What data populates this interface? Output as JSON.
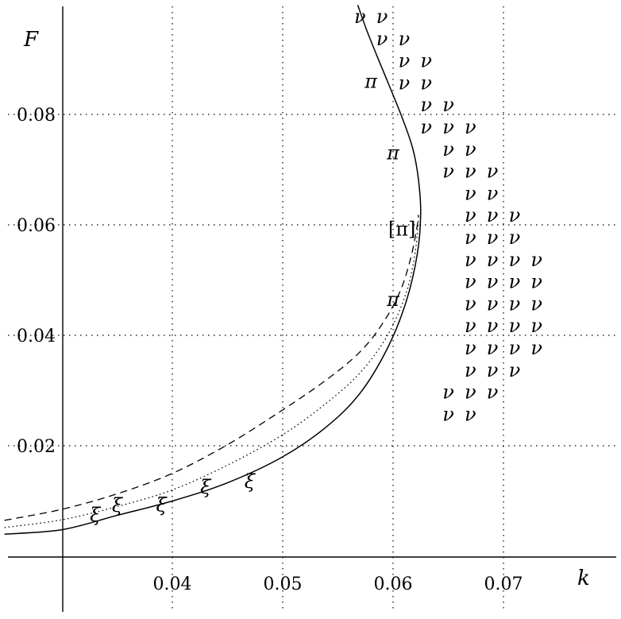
{
  "chart_data": {
    "type": "scatter",
    "title": "",
    "xlabel": "k",
    "ylabel": "F",
    "xlim": [
      0.025,
      0.075
    ],
    "ylim": [
      -0.001,
      0.1
    ],
    "x_ticks": [
      0.04,
      0.05,
      0.06,
      0.07
    ],
    "y_ticks": [
      0.02,
      0.04,
      0.06,
      0.08
    ],
    "x_tick_labels": [
      "0.04",
      "0.05",
      "0.06",
      "0.07"
    ],
    "y_tick_labels": [
      "0.02",
      "0.04",
      "0.06",
      "0.08"
    ],
    "grid": "dotted",
    "series": [
      {
        "style": "solid",
        "points": [
          [
            0.0248,
            0.004
          ],
          [
            0.03,
            0.0048
          ],
          [
            0.035,
            0.0074
          ],
          [
            0.04,
            0.01
          ],
          [
            0.045,
            0.0133
          ],
          [
            0.05,
            0.018
          ],
          [
            0.054,
            0.0235
          ],
          [
            0.057,
            0.0295
          ],
          [
            0.0595,
            0.0377
          ],
          [
            0.0612,
            0.0462
          ],
          [
            0.0622,
            0.0548
          ],
          [
            0.0625,
            0.062
          ],
          [
            0.0623,
            0.0682
          ],
          [
            0.0618,
            0.0737
          ],
          [
            0.0609,
            0.079
          ],
          [
            0.0598,
            0.0845
          ],
          [
            0.0586,
            0.0903
          ],
          [
            0.0576,
            0.0953
          ],
          [
            0.0568,
            0.0998
          ]
        ]
      },
      {
        "style": "dashed",
        "points": [
          [
            0.0248,
            0.0065
          ],
          [
            0.03,
            0.0085
          ],
          [
            0.035,
            0.0113
          ],
          [
            0.04,
            0.015
          ],
          [
            0.045,
            0.0202
          ],
          [
            0.05,
            0.0265
          ],
          [
            0.054,
            0.032
          ],
          [
            0.057,
            0.037
          ],
          [
            0.059,
            0.042
          ],
          [
            0.0606,
            0.0478
          ],
          [
            0.0616,
            0.054
          ],
          [
            0.0622,
            0.06
          ],
          [
            0.0623,
            0.0618
          ]
        ]
      },
      {
        "style": "dotted",
        "points": [
          [
            0.0248,
            0.0052
          ],
          [
            0.03,
            0.0066
          ],
          [
            0.035,
            0.009
          ],
          [
            0.04,
            0.012
          ],
          [
            0.045,
            0.0165
          ],
          [
            0.05,
            0.022
          ],
          [
            0.054,
            0.0278
          ],
          [
            0.057,
            0.0332
          ],
          [
            0.0595,
            0.04
          ],
          [
            0.0612,
            0.0478
          ],
          [
            0.062,
            0.055
          ],
          [
            0.0623,
            0.061
          ]
        ]
      }
    ],
    "markers": [
      {
        "symbol": "ξ",
        "points": [
          [
            0.033,
            0.0075
          ],
          [
            0.035,
            0.0092
          ],
          [
            0.039,
            0.0093
          ],
          [
            0.043,
            0.0125
          ],
          [
            0.047,
            0.0135
          ]
        ]
      },
      {
        "symbol": "π",
        "points": [
          [
            0.058,
            0.086
          ],
          [
            0.06,
            0.073
          ],
          [
            0.06,
            0.0465
          ]
        ]
      },
      {
        "symbol": "[π]",
        "points": [
          [
            0.0608,
            0.0592
          ]
        ]
      },
      {
        "symbol": "ν",
        "points": [
          [
            0.057,
            0.0977
          ],
          [
            0.059,
            0.0977
          ],
          [
            0.059,
            0.0937
          ],
          [
            0.061,
            0.0937
          ],
          [
            0.061,
            0.0897
          ],
          [
            0.063,
            0.0897
          ],
          [
            0.061,
            0.0857
          ],
          [
            0.063,
            0.0857
          ],
          [
            0.063,
            0.0817
          ],
          [
            0.065,
            0.0817
          ],
          [
            0.063,
            0.0777
          ],
          [
            0.065,
            0.0777
          ],
          [
            0.067,
            0.0777
          ],
          [
            0.065,
            0.0737
          ],
          [
            0.067,
            0.0737
          ],
          [
            0.065,
            0.0697
          ],
          [
            0.067,
            0.0697
          ],
          [
            0.069,
            0.0697
          ],
          [
            0.067,
            0.0657
          ],
          [
            0.069,
            0.0657
          ],
          [
            0.067,
            0.0617
          ],
          [
            0.069,
            0.0617
          ],
          [
            0.071,
            0.0617
          ],
          [
            0.067,
            0.0577
          ],
          [
            0.069,
            0.0577
          ],
          [
            0.071,
            0.0577
          ],
          [
            0.067,
            0.0537
          ],
          [
            0.069,
            0.0537
          ],
          [
            0.071,
            0.0537
          ],
          [
            0.073,
            0.0537
          ],
          [
            0.067,
            0.0497
          ],
          [
            0.069,
            0.0497
          ],
          [
            0.071,
            0.0497
          ],
          [
            0.073,
            0.0497
          ],
          [
            0.067,
            0.0457
          ],
          [
            0.069,
            0.0457
          ],
          [
            0.071,
            0.0457
          ],
          [
            0.073,
            0.0457
          ],
          [
            0.067,
            0.0417
          ],
          [
            0.069,
            0.0417
          ],
          [
            0.071,
            0.0417
          ],
          [
            0.073,
            0.0417
          ],
          [
            0.067,
            0.0377
          ],
          [
            0.069,
            0.0377
          ],
          [
            0.071,
            0.0377
          ],
          [
            0.073,
            0.0377
          ],
          [
            0.067,
            0.0337
          ],
          [
            0.069,
            0.0337
          ],
          [
            0.071,
            0.0337
          ],
          [
            0.065,
            0.0297
          ],
          [
            0.067,
            0.0297
          ],
          [
            0.069,
            0.0297
          ],
          [
            0.065,
            0.0257
          ],
          [
            0.067,
            0.0257
          ]
        ]
      }
    ]
  }
}
